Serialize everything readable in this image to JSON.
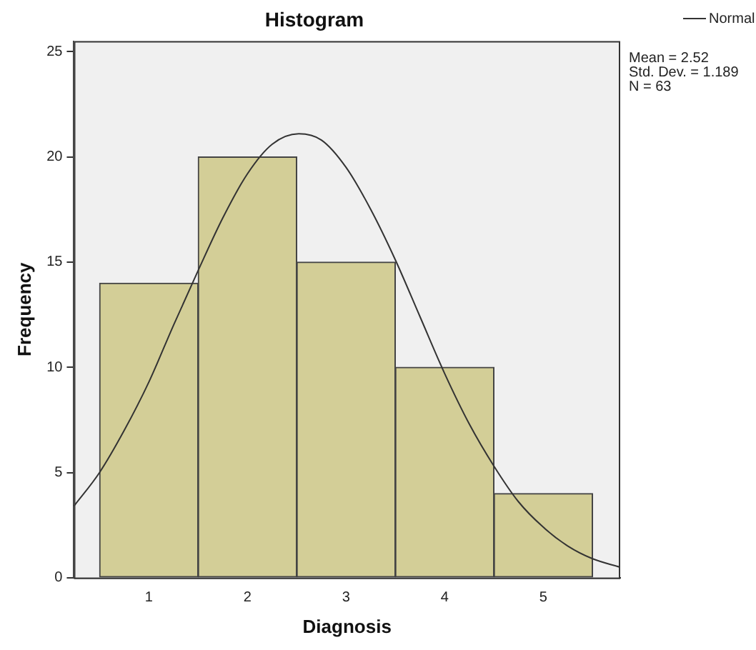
{
  "chart_data": {
    "type": "histogram",
    "title": "Histogram",
    "xlabel": "Diagnosis",
    "ylabel": "Frequency",
    "bins": [
      0.5,
      1.5,
      2.5,
      3.5,
      4.5,
      5.5
    ],
    "series": [
      {
        "color": "#d3ce97",
        "values": [
          14,
          20,
          15,
          10,
          4
        ]
      },
      {
        "type": "line",
        "name": "Normal",
        "color": "#333333",
        "x": [
          0.24,
          0.5,
          0.75,
          1.0,
          1.25,
          1.5,
          1.75,
          2.0,
          2.25,
          2.52,
          2.75,
          3.0,
          3.25,
          3.5,
          3.75,
          4.0,
          4.25,
          4.5,
          4.75,
          5.0,
          5.25,
          5.5,
          5.78
        ],
        "values": [
          3.4,
          5.0,
          7.0,
          9.3,
          12.0,
          14.6,
          17.1,
          19.2,
          20.6,
          21.1,
          20.8,
          19.5,
          17.5,
          15.1,
          12.4,
          9.7,
          7.3,
          5.3,
          3.6,
          2.4,
          1.5,
          0.9,
          0.5
        ]
      }
    ],
    "annotations": [
      "Mean = 2.52",
      "Std. Dev. = 1.189",
      "N = 63"
    ],
    "xlim": [
      0.24,
      5.78
    ],
    "ylim": [
      0,
      25.5
    ],
    "xticks": [
      1,
      2,
      3,
      4,
      5
    ],
    "yticks": [
      0,
      5,
      10,
      15,
      20,
      25
    ],
    "legend": "top right",
    "grid": false
  }
}
